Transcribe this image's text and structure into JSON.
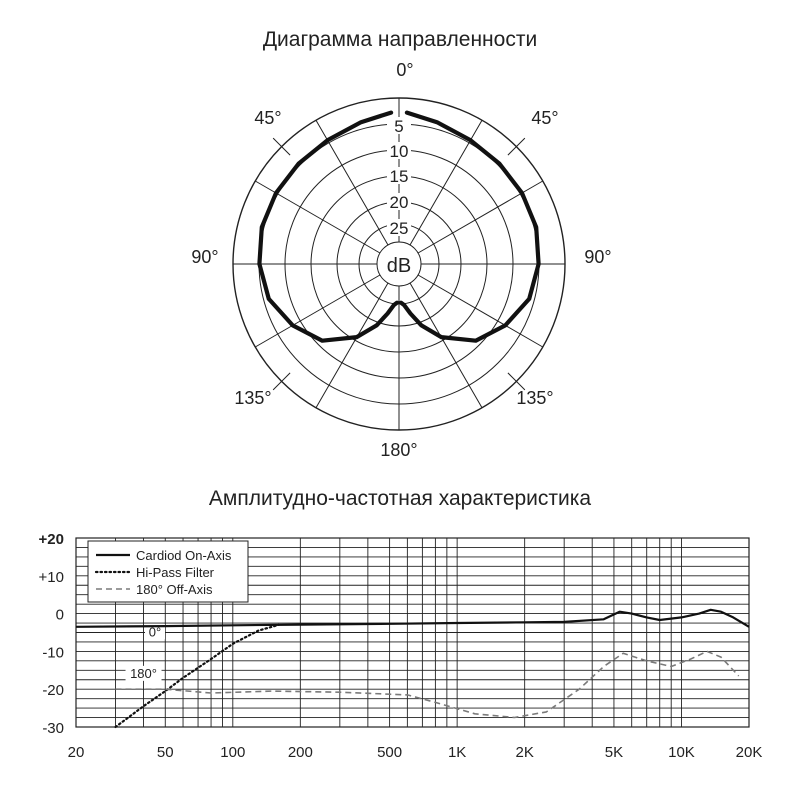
{
  "chart_data": [
    {
      "type": "polar",
      "title": "Диаграмма направленности",
      "center_label": "dB",
      "angle_labels": [
        {
          "angle": 0,
          "text": "0°"
        },
        {
          "angle": 45,
          "text": "45°"
        },
        {
          "angle": 90,
          "text": "90°"
        },
        {
          "angle": 135,
          "text": "135°"
        },
        {
          "angle": 180,
          "text": "180°"
        },
        {
          "angle": 225,
          "text": "135°"
        },
        {
          "angle": 270,
          "text": "90°"
        },
        {
          "angle": 315,
          "text": "45°"
        }
      ],
      "radial_ticks": [
        "5",
        "10",
        "15",
        "20",
        "25"
      ],
      "series": [
        {
          "points": [
            {
              "angle": 3,
              "db": -3
            },
            {
              "angle": 15,
              "db": -4
            },
            {
              "angle": 30,
              "db": -4.8
            },
            {
              "angle": 45,
              "db": -5
            },
            {
              "angle": 60,
              "db": -5
            },
            {
              "angle": 75,
              "db": -5
            },
            {
              "angle": 90,
              "db": -5.5
            },
            {
              "angle": 105,
              "db": -6.5
            },
            {
              "angle": 120,
              "db": -9
            },
            {
              "angle": 135,
              "db": -12
            },
            {
              "angle": 150,
              "db": -17
            },
            {
              "angle": 160,
              "db": -21
            },
            {
              "angle": 167,
              "db": -24
            },
            {
              "angle": 173,
              "db": -26
            },
            {
              "angle": 177,
              "db": -26.5
            }
          ]
        }
      ]
    },
    {
      "type": "line",
      "title": "Амплитудно-частотная характеристика",
      "x_scale": "log",
      "xlim": [
        20,
        20000
      ],
      "ylim": [
        -30,
        20
      ],
      "x_ticks": [
        {
          "value": 20,
          "label": "20"
        },
        {
          "value": 50,
          "label": "50"
        },
        {
          "value": 100,
          "label": "100"
        },
        {
          "value": 200,
          "label": "200"
        },
        {
          "value": 500,
          "label": "500"
        },
        {
          "value": 1000,
          "label": "1K"
        },
        {
          "value": 2000,
          "label": "2K"
        },
        {
          "value": 5000,
          "label": "5K"
        },
        {
          "value": 10000,
          "label": "10K"
        },
        {
          "value": 20000,
          "label": "20K"
        }
      ],
      "y_ticks": [
        {
          "value": 20,
          "label": "+20"
        },
        {
          "value": 10,
          "label": "+10"
        },
        {
          "value": 0,
          "label": "0"
        },
        {
          "value": -10,
          "label": "-10"
        },
        {
          "value": -20,
          "label": "-20"
        },
        {
          "value": -30,
          "label": "-30"
        }
      ],
      "grid": true,
      "legend": "top-left",
      "annotations": [
        {
          "text": "0°",
          "x": 45,
          "y": -6
        },
        {
          "text": "180°",
          "x": 40,
          "y": -17
        }
      ],
      "series": [
        {
          "name": "Cardiod On-Axis",
          "style": "solid",
          "x": [
            20,
            50,
            100,
            200,
            500,
            1000,
            2000,
            3000,
            4500,
            5300,
            6000,
            7000,
            8000,
            10000,
            12000,
            13500,
            15000,
            17000,
            20000
          ],
          "y": [
            -3.5,
            -3.3,
            -3.1,
            -2.9,
            -2.7,
            -2.5,
            -2.3,
            -2.2,
            -1.5,
            0.5,
            0,
            -1,
            -1.7,
            -1,
            0,
            1,
            0.5,
            -1,
            -3.5
          ]
        },
        {
          "name": "Hi-Pass Filter",
          "style": "dotted",
          "x": [
            30,
            40,
            50,
            60,
            80,
            100,
            130,
            160
          ],
          "y": [
            -30,
            -24.5,
            -20.5,
            -17,
            -12,
            -8,
            -4.5,
            -3
          ]
        },
        {
          "name": "180° Off-Axis",
          "style": "dashed",
          "x": [
            30,
            50,
            80,
            150,
            300,
            600,
            800,
            1200,
            1800,
            2500,
            3500,
            4500,
            5500,
            7000,
            9000,
            11000,
            13000,
            15000,
            18000
          ],
          "y": [
            -20,
            -20,
            -21,
            -20.5,
            -20.8,
            -21.5,
            -23.5,
            -26.5,
            -27.5,
            -26,
            -20,
            -14,
            -10.5,
            -12.5,
            -14,
            -12,
            -10,
            -11.5,
            -16.5
          ]
        }
      ]
    }
  ]
}
